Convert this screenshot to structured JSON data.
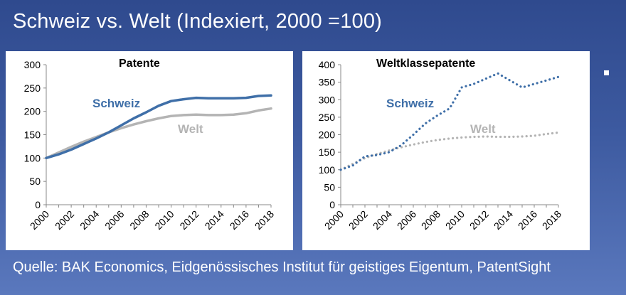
{
  "slide": {
    "title": "Schweiz vs. Welt (Indexiert, 2000 =100)",
    "source": "Quelle: BAK Economics, Eidgenössisches Institut für geistiges Eigentum, PatentSight"
  },
  "colors": {
    "schweiz": "#3f6fa8",
    "welt": "#b4b4b4"
  },
  "chart_data": [
    {
      "type": "line",
      "title": "Patente",
      "xlabel": "",
      "ylabel": "",
      "xlim": [
        2000,
        2018
      ],
      "ylim": [
        0,
        300
      ],
      "yticks": [
        0,
        50,
        100,
        150,
        200,
        250,
        300
      ],
      "xticks": [
        "2000",
        "2002",
        "2004",
        "2006",
        "2008",
        "2010",
        "2012",
        "2014",
        "2016",
        "2018"
      ],
      "grid": false,
      "series": [
        {
          "name": "Schweiz",
          "style": "solid",
          "color": "#3f6fa8",
          "x": [
            2000,
            2001,
            2002,
            2003,
            2004,
            2005,
            2006,
            2007,
            2008,
            2009,
            2010,
            2011,
            2012,
            2013,
            2014,
            2015,
            2016,
            2017,
            2018
          ],
          "values": [
            100,
            108,
            118,
            130,
            142,
            155,
            170,
            185,
            198,
            212,
            222,
            226,
            229,
            228,
            228,
            228,
            229,
            233,
            234
          ]
        },
        {
          "name": "Welt",
          "style": "solid",
          "color": "#b4b4b4",
          "x": [
            2000,
            2001,
            2002,
            2003,
            2004,
            2005,
            2006,
            2007,
            2008,
            2009,
            2010,
            2011,
            2012,
            2013,
            2014,
            2015,
            2016,
            2017,
            2018
          ],
          "values": [
            100,
            112,
            124,
            135,
            145,
            155,
            164,
            172,
            179,
            185,
            190,
            192,
            193,
            192,
            192,
            193,
            196,
            202,
            206
          ]
        }
      ]
    },
    {
      "type": "line",
      "title": "Weltklassepatente",
      "xlabel": "",
      "ylabel": "",
      "xlim": [
        2000,
        2018
      ],
      "ylim": [
        0,
        400
      ],
      "yticks": [
        0,
        50,
        100,
        150,
        200,
        250,
        300,
        350,
        400
      ],
      "xticks": [
        "2000",
        "2002",
        "2004",
        "2006",
        "2008",
        "2010",
        "2012",
        "2014",
        "2016",
        "2018"
      ],
      "grid": false,
      "series": [
        {
          "name": "Schweiz",
          "style": "dotted",
          "color": "#3f6fa8",
          "x": [
            2000,
            2001,
            2002,
            2003,
            2004,
            2005,
            2006,
            2007,
            2008,
            2009,
            2010,
            2011,
            2012,
            2013,
            2014,
            2015,
            2016,
            2017,
            2018
          ],
          "values": [
            100,
            112,
            138,
            142,
            150,
            170,
            200,
            232,
            255,
            275,
            335,
            345,
            360,
            375,
            355,
            335,
            345,
            355,
            365
          ]
        },
        {
          "name": "Welt",
          "style": "dotted",
          "color": "#b4b4b4",
          "x": [
            2000,
            2001,
            2002,
            2003,
            2004,
            2005,
            2006,
            2007,
            2008,
            2009,
            2010,
            2011,
            2012,
            2013,
            2014,
            2015,
            2016,
            2017,
            2018
          ],
          "values": [
            100,
            117,
            133,
            145,
            155,
            164,
            172,
            179,
            185,
            189,
            192,
            194,
            195,
            194,
            194,
            195,
            197,
            202,
            206
          ]
        }
      ]
    }
  ]
}
